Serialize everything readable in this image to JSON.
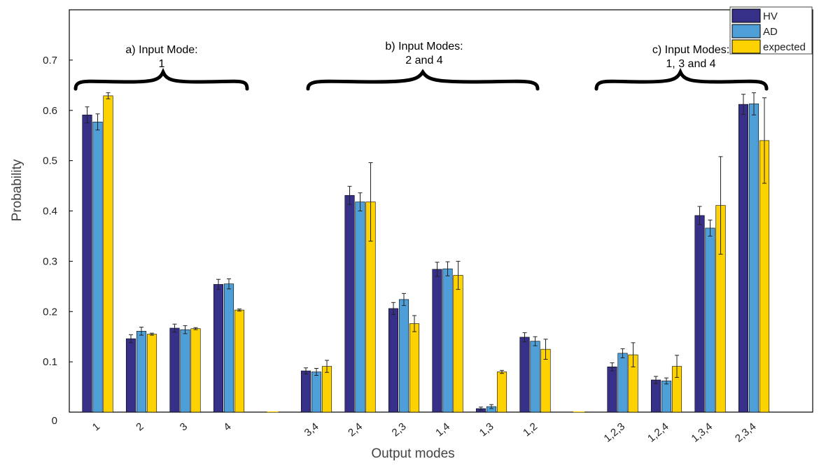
{
  "chart_data": {
    "type": "bar",
    "title": "",
    "xlabel": "Output modes",
    "ylabel": "Probability",
    "ylim": [
      0,
      0.8
    ],
    "yticks": [
      0,
      0.1,
      0.2,
      0.3,
      0.4,
      0.5,
      0.6,
      0.7
    ],
    "ytick_labels": [
      "0",
      "0.1",
      "0.2",
      "0.3",
      "0.4",
      "0.5",
      "0.6",
      "0.7"
    ],
    "grid": false,
    "legend_position": "top-right",
    "categories": [
      "1",
      "2",
      "3",
      "4",
      "",
      "3,4",
      "2,4",
      "2,3",
      "1,4",
      "1,3",
      "1,2",
      "",
      "1,2,3",
      "1,2,4",
      "1,3,4",
      "2,3,4"
    ],
    "series": [
      {
        "name": "HV",
        "color": "#363088",
        "values": [
          0.591,
          0.146,
          0.167,
          0.254,
          0,
          0.082,
          0.431,
          0.206,
          0.284,
          0.007,
          0.149,
          0,
          0.09,
          0.064,
          0.391,
          0.612
        ],
        "errors": [
          0.016,
          0.008,
          0.008,
          0.01,
          0,
          0.006,
          0.018,
          0.012,
          0.014,
          0.003,
          0.009,
          0,
          0.008,
          0.007,
          0.018,
          0.02
        ]
      },
      {
        "name": "AD",
        "color": "#4e9ed8",
        "values": [
          0.577,
          0.161,
          0.164,
          0.255,
          0,
          0.08,
          0.418,
          0.224,
          0.285,
          0.011,
          0.141,
          0,
          0.117,
          0.062,
          0.366,
          0.613
        ],
        "errors": [
          0.016,
          0.008,
          0.008,
          0.01,
          0,
          0.007,
          0.018,
          0.012,
          0.014,
          0.004,
          0.009,
          0,
          0.009,
          0.006,
          0.016,
          0.022
        ]
      },
      {
        "name": "expected",
        "color": "#fdd200",
        "values": [
          0.629,
          0.155,
          0.166,
          0.203,
          0,
          0.091,
          0.418,
          0.176,
          0.272,
          0.08,
          0.125,
          0,
          0.114,
          0.091,
          0.411,
          0.54
        ],
        "errors": [
          0.006,
          0.002,
          0.002,
          0.002,
          0,
          0.012,
          0.078,
          0.016,
          0.028,
          0.003,
          0.02,
          0,
          0.024,
          0.022,
          0.097,
          0.085
        ]
      }
    ],
    "annotations": [
      {
        "id": "a",
        "lines": [
          "a) Input Mode:",
          "1"
        ]
      },
      {
        "id": "b",
        "lines": [
          "b) Input Modes:",
          "2 and 4"
        ]
      },
      {
        "id": "c",
        "lines": [
          "c) Input Modes:",
          "1, 3 and 4"
        ]
      }
    ]
  }
}
